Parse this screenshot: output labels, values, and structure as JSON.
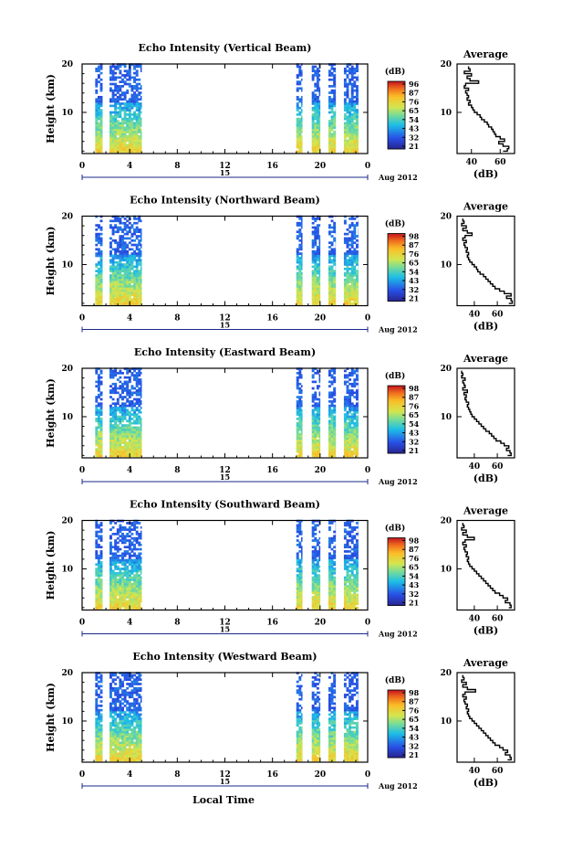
{
  "figure": {
    "xlabel": "Local Time",
    "date_label": "15",
    "month_label": "Aug 2012",
    "colorbar_unit": "(dB)",
    "avg_title": "Average",
    "avg_xlabel": "(dB)"
  },
  "chart_data": [
    {
      "type": "heatmap",
      "title": "Echo Intensity (Vertical Beam)",
      "ylabel": "Height (km)",
      "xlabel": "Local Time",
      "xticks": [
        "0",
        "4",
        "8",
        "12",
        "16",
        "20",
        "0"
      ],
      "yticks": [
        "10",
        "20"
      ],
      "xlim": [
        0,
        24
      ],
      "ylim": [
        1.5,
        20
      ],
      "colorbar": {
        "label": "(dB)",
        "ticks": [
          "96",
          "87",
          "76",
          "65",
          "54",
          "43",
          "32",
          "21"
        ]
      },
      "data_segments": [
        [
          1.1,
          1.7
        ],
        [
          2.3,
          5.0
        ],
        [
          18.0,
          18.5
        ],
        [
          19.3,
          20.0
        ],
        [
          20.7,
          21.3
        ],
        [
          22.0,
          23.2
        ]
      ],
      "profile": {
        "title": "Average",
        "xlabel": "(dB)",
        "xticks": [
          "40",
          "60"
        ],
        "yticks": [
          "10",
          "20"
        ],
        "xlim": [
          30,
          70
        ],
        "ylim": [
          1.5,
          20
        ],
        "heights": [
          2,
          2.5,
          3,
          3.5,
          4,
          4.5,
          5,
          5.5,
          6,
          6.5,
          7,
          7.5,
          8,
          8.5,
          9,
          9.5,
          10,
          10.5,
          11,
          11.5,
          12,
          12.5,
          13,
          13.5,
          14,
          14.5,
          15,
          15.5,
          16,
          16.5,
          17,
          17.5,
          18,
          18.5,
          19,
          19.5
        ],
        "values": [
          62,
          65,
          66,
          62,
          59,
          63,
          60,
          57,
          56,
          55,
          54,
          52,
          51,
          49,
          47,
          46,
          44,
          42,
          41,
          40,
          38,
          39,
          37,
          38,
          37,
          36,
          38,
          35,
          36,
          45,
          39,
          37,
          40,
          35,
          39,
          38
        ]
      }
    },
    {
      "type": "heatmap",
      "title": "Echo Intensity (Northward Beam)",
      "ylabel": "Height (km)",
      "xlabel": "Local Time",
      "xticks": [
        "0",
        "4",
        "8",
        "12",
        "16",
        "20",
        "0"
      ],
      "yticks": [
        "10",
        "20"
      ],
      "xlim": [
        0,
        24
      ],
      "ylim": [
        1.5,
        20
      ],
      "colorbar": {
        "label": "(dB)",
        "ticks": [
          "98",
          "87",
          "76",
          "65",
          "54",
          "43",
          "32",
          "21"
        ]
      },
      "data_segments": [
        [
          1.1,
          1.7
        ],
        [
          2.3,
          5.0
        ],
        [
          18.0,
          18.5
        ],
        [
          19.3,
          20.0
        ],
        [
          20.7,
          21.3
        ],
        [
          22.0,
          23.2
        ]
      ],
      "profile": {
        "title": "Average",
        "xlabel": "(dB)",
        "xticks": [
          "40",
          "60"
        ],
        "yticks": [
          "10",
          "20"
        ],
        "xlim": [
          25,
          75
        ],
        "ylim": [
          1.5,
          20
        ],
        "heights": [
          2,
          2.5,
          3,
          3.5,
          4,
          4.5,
          5,
          5.5,
          6,
          6.5,
          7,
          7.5,
          8,
          8.5,
          9,
          9.5,
          10,
          10.5,
          11,
          11.5,
          12,
          12.5,
          13,
          13.5,
          14,
          14.5,
          15,
          15.5,
          16,
          16.5,
          17,
          17.5,
          18,
          18.5,
          19,
          19.5
        ],
        "values": [
          70,
          73,
          72,
          68,
          72,
          66,
          62,
          58,
          56,
          54,
          52,
          50,
          48,
          45,
          43,
          42,
          40,
          38,
          36,
          35,
          34,
          35,
          33,
          34,
          32,
          31,
          33,
          30,
          32,
          38,
          34,
          30,
          33,
          29,
          31,
          30
        ]
      }
    },
    {
      "type": "heatmap",
      "title": "Echo Intensity (Eastward Beam)",
      "ylabel": "Height (km)",
      "xlabel": "Local Time",
      "xticks": [
        "0",
        "4",
        "8",
        "12",
        "16",
        "20",
        "0"
      ],
      "yticks": [
        "10",
        "20"
      ],
      "xlim": [
        0,
        24
      ],
      "ylim": [
        1.5,
        20
      ],
      "colorbar": {
        "label": "(dB)",
        "ticks": [
          "98",
          "87",
          "76",
          "65",
          "54",
          "43",
          "32",
          "21"
        ]
      },
      "data_segments": [
        [
          1.1,
          1.7
        ],
        [
          2.3,
          5.0
        ],
        [
          18.0,
          18.5
        ],
        [
          19.3,
          20.0
        ],
        [
          20.7,
          21.3
        ],
        [
          22.0,
          23.2
        ]
      ],
      "profile": {
        "title": "Average",
        "xlabel": "(dB)",
        "xticks": [
          "40",
          "60"
        ],
        "yticks": [
          "10",
          "20"
        ],
        "xlim": [
          25,
          75
        ],
        "ylim": [
          1.5,
          20
        ],
        "heights": [
          2,
          2.5,
          3,
          3.5,
          4,
          4.5,
          5,
          5.5,
          6,
          6.5,
          7,
          7.5,
          8,
          8.5,
          9,
          9.5,
          10,
          10.5,
          11,
          11.5,
          12,
          12.5,
          13,
          13.5,
          14,
          14.5,
          15,
          15.5,
          16,
          16.5,
          17,
          17.5,
          18,
          18.5,
          19,
          19.5
        ],
        "values": [
          69,
          72,
          71,
          68,
          70,
          66,
          63,
          59,
          57,
          55,
          53,
          50,
          48,
          46,
          44,
          42,
          40,
          38,
          37,
          36,
          35,
          34,
          35,
          33,
          32,
          33,
          31,
          34,
          30,
          32,
          31,
          30,
          32,
          29,
          30,
          29
        ]
      }
    },
    {
      "type": "heatmap",
      "title": "Echo Intensity (Southward Beam)",
      "ylabel": "Height (km)",
      "xlabel": "Local Time",
      "xticks": [
        "0",
        "4",
        "8",
        "12",
        "16",
        "20",
        "0"
      ],
      "yticks": [
        "10",
        "20"
      ],
      "xlim": [
        0,
        24
      ],
      "ylim": [
        1.5,
        20
      ],
      "colorbar": {
        "label": "(dB)",
        "ticks": [
          "98",
          "87",
          "76",
          "65",
          "54",
          "43",
          "32",
          "21"
        ]
      },
      "data_segments": [
        [
          1.1,
          1.7
        ],
        [
          2.3,
          5.0
        ],
        [
          18.0,
          18.5
        ],
        [
          19.3,
          20.0
        ],
        [
          20.7,
          21.3
        ],
        [
          22.0,
          23.2
        ]
      ],
      "profile": {
        "title": "Average",
        "xlabel": "(dB)",
        "xticks": [
          "40",
          "60"
        ],
        "yticks": [
          "10",
          "20"
        ],
        "xlim": [
          25,
          75
        ],
        "ylim": [
          1.5,
          20
        ],
        "heights": [
          2,
          2.5,
          3,
          3.5,
          4,
          4.5,
          5,
          5.5,
          6,
          6.5,
          7,
          7.5,
          8,
          8.5,
          9,
          9.5,
          10,
          10.5,
          11,
          11.5,
          12,
          12.5,
          13,
          13.5,
          14,
          14.5,
          15,
          15.5,
          16,
          16.5,
          17,
          17.5,
          18,
          18.5,
          19,
          19.5
        ],
        "values": [
          70,
          72,
          71,
          67,
          69,
          65,
          62,
          58,
          56,
          54,
          52,
          50,
          48,
          46,
          44,
          42,
          40,
          38,
          36,
          35,
          34,
          35,
          33,
          34,
          32,
          31,
          33,
          30,
          32,
          40,
          34,
          30,
          33,
          29,
          31,
          30
        ]
      }
    },
    {
      "type": "heatmap",
      "title": "Echo Intensity (Westward Beam)",
      "ylabel": "Height (km)",
      "xlabel": "Local Time",
      "xticks": [
        "0",
        "4",
        "8",
        "12",
        "16",
        "20",
        "0"
      ],
      "yticks": [
        "10",
        "20"
      ],
      "xlim": [
        0,
        24
      ],
      "ylim": [
        1.5,
        20
      ],
      "colorbar": {
        "label": "(dB)",
        "ticks": [
          "98",
          "87",
          "76",
          "65",
          "54",
          "43",
          "32",
          "21"
        ]
      },
      "data_segments": [
        [
          1.1,
          1.7
        ],
        [
          2.3,
          5.0
        ],
        [
          18.0,
          18.5
        ],
        [
          19.3,
          20.0
        ],
        [
          20.7,
          21.3
        ],
        [
          22.0,
          23.2
        ]
      ],
      "profile": {
        "title": "Average",
        "xlabel": "(dB)",
        "xticks": [
          "40",
          "60"
        ],
        "yticks": [
          "10",
          "20"
        ],
        "xlim": [
          25,
          75
        ],
        "ylim": [
          1.5,
          20
        ],
        "heights": [
          2,
          2.5,
          3,
          3.5,
          4,
          4.5,
          5,
          5.5,
          6,
          6.5,
          7,
          7.5,
          8,
          8.5,
          9,
          9.5,
          10,
          10.5,
          11,
          11.5,
          12,
          12.5,
          13,
          13.5,
          14,
          14.5,
          15,
          15.5,
          16,
          16.5,
          17,
          17.5,
          18,
          18.5,
          19,
          19.5
        ],
        "values": [
          69,
          72,
          71,
          67,
          69,
          65,
          62,
          58,
          56,
          54,
          52,
          50,
          48,
          46,
          44,
          42,
          40,
          38,
          36,
          35,
          34,
          35,
          33,
          34,
          32,
          31,
          33,
          30,
          32,
          41,
          34,
          30,
          33,
          29,
          31,
          30
        ]
      }
    }
  ]
}
